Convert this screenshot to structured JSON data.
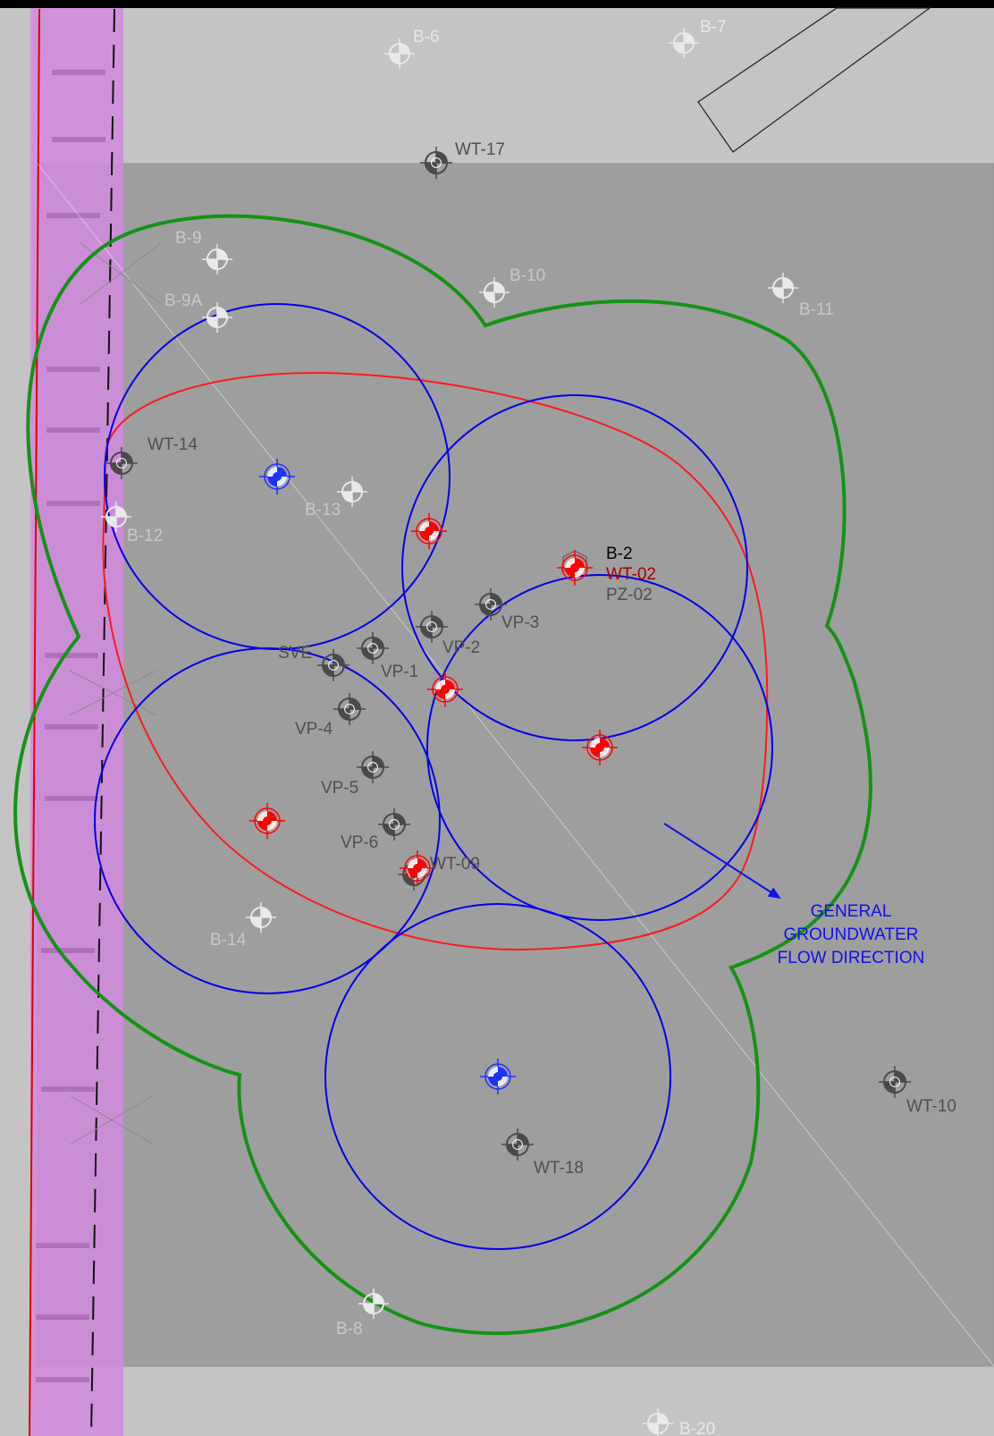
{
  "colors": {
    "frame_top": "#000000",
    "background_outer": "#c4c4c4",
    "background_inner": "#9b9b9b",
    "property_strip": "#d48ae0",
    "property_line": "#e00000",
    "easement_dash": "#111111",
    "plume_outline": "#ff1a1a",
    "radius_of_influence": "#0000ee",
    "treatment_envelope": "#139413",
    "well_dark": "#4a4a4a",
    "well_light": "#e9e9e9",
    "well_red": "#ff0000",
    "well_blue": "#1a33ff",
    "label_grey": "#4f4f4f",
    "label_light": "#c9c9c9",
    "label_black": "#000000",
    "label_darkred": "#a80000",
    "label_blue": "#1010ee",
    "flow_arrow": "#1010ee"
  },
  "labels": {
    "b6": "B-6",
    "b7": "B-7",
    "wt17": "WT-17",
    "b9": "B-9",
    "b9a": "B-9A",
    "b10": "B-10",
    "b11": "B-11",
    "wt14": "WT-14",
    "b12": "B-12",
    "b13": "B-13",
    "b2": "B-2",
    "wt02": "WT-02",
    "pz02": "PZ-02",
    "vp3": "VP-3",
    "vp2": "VP-2",
    "sve": "SVE",
    "vp1": "VP-1",
    "vp4": "VP-4",
    "vp5": "VP-5",
    "vp6": "VP-6",
    "wt09": "WT-09",
    "b14": "B-14",
    "wt10": "WT-10",
    "wt18": "WT-18",
    "b8": "B-8",
    "b20": "B-20"
  },
  "flow_label": {
    "line1": "GENERAL",
    "line2": "GROUNDWATER",
    "line3": "FLOW DIRECTION"
  },
  "symbols": {
    "monitoring_well": "crosshair-well-icon",
    "boring": "quartered-circle-icon",
    "injection_point_red": "red-target-icon",
    "injection_point_blue": "blue-target-icon",
    "flow_arrow": "arrow-icon"
  }
}
